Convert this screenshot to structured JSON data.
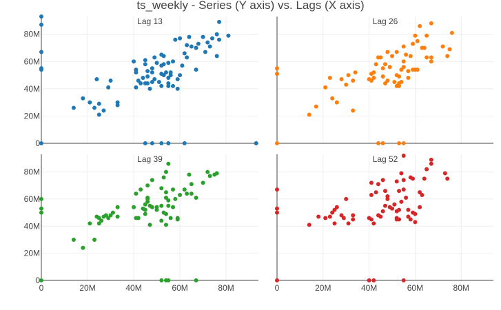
{
  "chart_data": {
    "type": "scatter",
    "title": "ts_weekly - Series (Y axis) vs. Lags (X axis)",
    "xlim": [
      0,
      94
    ],
    "ylim": [
      0,
      93
    ],
    "x_ticks": [
      0,
      20,
      40,
      60,
      80
    ],
    "y_ticks": [
      0,
      20,
      40,
      60,
      80
    ],
    "x_tick_labels": [
      "0",
      "20M",
      "40M",
      "60M",
      "80M"
    ],
    "y_tick_labels": [
      "0",
      "20M",
      "40M",
      "60M",
      "80M"
    ],
    "grid": true,
    "panels": [
      {
        "label": "Lag 13",
        "color": "#1f77b4",
        "points": [
          [
            0,
            93
          ],
          [
            0,
            87
          ],
          [
            0,
            67
          ],
          [
            0,
            55
          ],
          [
            0,
            54
          ],
          [
            0,
            0
          ],
          [
            14,
            26
          ],
          [
            18,
            33
          ],
          [
            21,
            30
          ],
          [
            23,
            26
          ],
          [
            25,
            21
          ],
          [
            24,
            47
          ],
          [
            25,
            29
          ],
          [
            27,
            24
          ],
          [
            29,
            41
          ],
          [
            30,
            46
          ],
          [
            33,
            30
          ],
          [
            33,
            28
          ],
          [
            40,
            60
          ],
          [
            41,
            41
          ],
          [
            41,
            52
          ],
          [
            41,
            54
          ],
          [
            42,
            46
          ],
          [
            43,
            44
          ],
          [
            44,
            48
          ],
          [
            45,
            44
          ],
          [
            45,
            58
          ],
          [
            45,
            61
          ],
          [
            46,
            49
          ],
          [
            46,
            44
          ],
          [
            46,
            53
          ],
          [
            47,
            40
          ],
          [
            48,
            45
          ],
          [
            48,
            52
          ],
          [
            48,
            55
          ],
          [
            49,
            47
          ],
          [
            49,
            63
          ],
          [
            50,
            59
          ],
          [
            51,
            45
          ],
          [
            52,
            51
          ],
          [
            52,
            42
          ],
          [
            52,
            57
          ],
          [
            52,
            65
          ],
          [
            53,
            50
          ],
          [
            53,
            64
          ],
          [
            53,
            58
          ],
          [
            54,
            52
          ],
          [
            55,
            48
          ],
          [
            55,
            59
          ],
          [
            55,
            44
          ],
          [
            55,
            42
          ],
          [
            56,
            52
          ],
          [
            56,
            50
          ],
          [
            57,
            42
          ],
          [
            57,
            60
          ],
          [
            58,
            76
          ],
          [
            59,
            47
          ],
          [
            59,
            40
          ],
          [
            60,
            50
          ],
          [
            60,
            77
          ],
          [
            61,
            57
          ],
          [
            62,
            66
          ],
          [
            63,
            63
          ],
          [
            63,
            72
          ],
          [
            64,
            78
          ],
          [
            65,
            71
          ],
          [
            67,
            54
          ],
          [
            67,
            70
          ],
          [
            68,
            73
          ],
          [
            70,
            78
          ],
          [
            71,
            67
          ],
          [
            72,
            74
          ],
          [
            73,
            71
          ],
          [
            74,
            77
          ],
          [
            76,
            64
          ],
          [
            76,
            80
          ],
          [
            77,
            76
          ],
          [
            77,
            89
          ],
          [
            81,
            79
          ],
          [
            93,
            0
          ],
          [
            45,
            0
          ],
          [
            48,
            0
          ],
          [
            52,
            0
          ],
          [
            55,
            0
          ],
          [
            62,
            0
          ]
        ]
      },
      {
        "label": "Lag 26",
        "color": "#ff7f0e",
        "points": [
          [
            0,
            55
          ],
          [
            0,
            51
          ],
          [
            0,
            0
          ],
          [
            14,
            21
          ],
          [
            17,
            27
          ],
          [
            21,
            41
          ],
          [
            23,
            48
          ],
          [
            24,
            33
          ],
          [
            26,
            30
          ],
          [
            28,
            47
          ],
          [
            30,
            43
          ],
          [
            31,
            50
          ],
          [
            33,
            24
          ],
          [
            33,
            46
          ],
          [
            34,
            52
          ],
          [
            40,
            47
          ],
          [
            41,
            51
          ],
          [
            41,
            46
          ],
          [
            42,
            52
          ],
          [
            42,
            48
          ],
          [
            43,
            58
          ],
          [
            44,
            63
          ],
          [
            45,
            63
          ],
          [
            46,
            55
          ],
          [
            46,
            49
          ],
          [
            47,
            44
          ],
          [
            47,
            58
          ],
          [
            48,
            46
          ],
          [
            48,
            67
          ],
          [
            49,
            56
          ],
          [
            50,
            64
          ],
          [
            51,
            45
          ],
          [
            52,
            42
          ],
          [
            52,
            50
          ],
          [
            52,
            67
          ],
          [
            53,
            49
          ],
          [
            53,
            44
          ],
          [
            53,
            42
          ],
          [
            54,
            45
          ],
          [
            54,
            54
          ],
          [
            55,
            56
          ],
          [
            55,
            60
          ],
          [
            55,
            71
          ],
          [
            56,
            65
          ],
          [
            57,
            48
          ],
          [
            57,
            53
          ],
          [
            58,
            64
          ],
          [
            59,
            54
          ],
          [
            59,
            73
          ],
          [
            60,
            79
          ],
          [
            60,
            54
          ],
          [
            61,
            75
          ],
          [
            61,
            54
          ],
          [
            62,
            86
          ],
          [
            63,
            70
          ],
          [
            64,
            70
          ],
          [
            65,
            63
          ],
          [
            65,
            79
          ],
          [
            67,
            63
          ],
          [
            67,
            60
          ],
          [
            67,
            88
          ],
          [
            72,
            71
          ],
          [
            74,
            64
          ],
          [
            75,
            69
          ],
          [
            76,
            81
          ],
          [
            44,
            0
          ],
          [
            46,
            0
          ],
          [
            53,
            0
          ],
          [
            55,
            0
          ]
        ]
      },
      {
        "label": "Lag 39",
        "color": "#2ca02c",
        "points": [
          [
            0,
            60
          ],
          [
            0,
            53
          ],
          [
            0,
            50
          ],
          [
            0,
            0
          ],
          [
            14,
            30
          ],
          [
            18,
            24
          ],
          [
            21,
            42
          ],
          [
            23,
            30
          ],
          [
            24,
            47
          ],
          [
            25,
            46
          ],
          [
            25,
            42
          ],
          [
            26,
            44
          ],
          [
            27,
            47
          ],
          [
            28,
            48
          ],
          [
            29,
            46
          ],
          [
            30,
            48
          ],
          [
            31,
            50
          ],
          [
            33,
            47
          ],
          [
            33,
            54
          ],
          [
            40,
            54
          ],
          [
            41,
            46
          ],
          [
            41,
            64
          ],
          [
            42,
            46
          ],
          [
            43,
            67
          ],
          [
            44,
            53
          ],
          [
            45,
            52
          ],
          [
            45,
            49
          ],
          [
            45,
            56
          ],
          [
            46,
            61
          ],
          [
            46,
            60
          ],
          [
            46,
            58
          ],
          [
            46,
            70
          ],
          [
            47,
            55
          ],
          [
            47,
            41
          ],
          [
            48,
            54
          ],
          [
            48,
            74
          ],
          [
            50,
            54
          ],
          [
            50,
            52
          ],
          [
            52,
            55
          ],
          [
            52,
            44
          ],
          [
            52,
            68
          ],
          [
            53,
            50
          ],
          [
            53,
            76
          ],
          [
            54,
            61
          ],
          [
            54,
            65
          ],
          [
            54,
            49
          ],
          [
            54,
            41
          ],
          [
            54,
            80
          ],
          [
            55,
            55
          ],
          [
            55,
            59
          ],
          [
            55,
            86
          ],
          [
            56,
            46
          ],
          [
            57,
            54
          ],
          [
            57,
            67
          ],
          [
            58,
            60
          ],
          [
            59,
            45
          ],
          [
            59,
            46
          ],
          [
            60,
            63
          ],
          [
            62,
            67
          ],
          [
            63,
            64
          ],
          [
            64,
            78
          ],
          [
            65,
            71
          ],
          [
            65,
            64
          ],
          [
            67,
            61
          ],
          [
            70,
            72
          ],
          [
            72,
            80
          ],
          [
            73,
            77
          ],
          [
            75,
            78
          ],
          [
            76,
            79
          ],
          [
            52,
            0
          ],
          [
            54,
            0
          ],
          [
            55,
            0
          ],
          [
            67,
            0
          ]
        ]
      },
      {
        "label": "Lag 52",
        "color": "#d62728",
        "points": [
          [
            0,
            67
          ],
          [
            0,
            53
          ],
          [
            0,
            50
          ],
          [
            0,
            0
          ],
          [
            14,
            41
          ],
          [
            18,
            47
          ],
          [
            21,
            46
          ],
          [
            23,
            47
          ],
          [
            24,
            50
          ],
          [
            25,
            42
          ],
          [
            25,
            52
          ],
          [
            26,
            54
          ],
          [
            28,
            48
          ],
          [
            29,
            46
          ],
          [
            30,
            60
          ],
          [
            31,
            42
          ],
          [
            33,
            48
          ],
          [
            33,
            45
          ],
          [
            40,
            46
          ],
          [
            41,
            45
          ],
          [
            41,
            63
          ],
          [
            41,
            72
          ],
          [
            42,
            42
          ],
          [
            43,
            65
          ],
          [
            44,
            71
          ],
          [
            44,
            48
          ],
          [
            45,
            47
          ],
          [
            46,
            51
          ],
          [
            46,
            74
          ],
          [
            47,
            55
          ],
          [
            47,
            66
          ],
          [
            48,
            60
          ],
          [
            48,
            62
          ],
          [
            49,
            54
          ],
          [
            50,
            53
          ],
          [
            51,
            56
          ],
          [
            52,
            51
          ],
          [
            52,
            45
          ],
          [
            52,
            73
          ],
          [
            52,
            46
          ],
          [
            53,
            66
          ],
          [
            53,
            52
          ],
          [
            53,
            45
          ],
          [
            54,
            79
          ],
          [
            54,
            58
          ],
          [
            55,
            74
          ],
          [
            55,
            92
          ],
          [
            55,
            67
          ],
          [
            56,
            61
          ],
          [
            57,
            52
          ],
          [
            57,
            47
          ],
          [
            58,
            45
          ],
          [
            58,
            76
          ],
          [
            59,
            75
          ],
          [
            59,
            50
          ],
          [
            60,
            49
          ],
          [
            60,
            43
          ],
          [
            62,
            65
          ],
          [
            62,
            54
          ],
          [
            63,
            63
          ],
          [
            64,
            75
          ],
          [
            65,
            82
          ],
          [
            67,
            89
          ],
          [
            67,
            86
          ],
          [
            73,
            79
          ],
          [
            74,
            75
          ],
          [
            40,
            0
          ],
          [
            42,
            0
          ],
          [
            55,
            0
          ]
        ]
      }
    ]
  }
}
